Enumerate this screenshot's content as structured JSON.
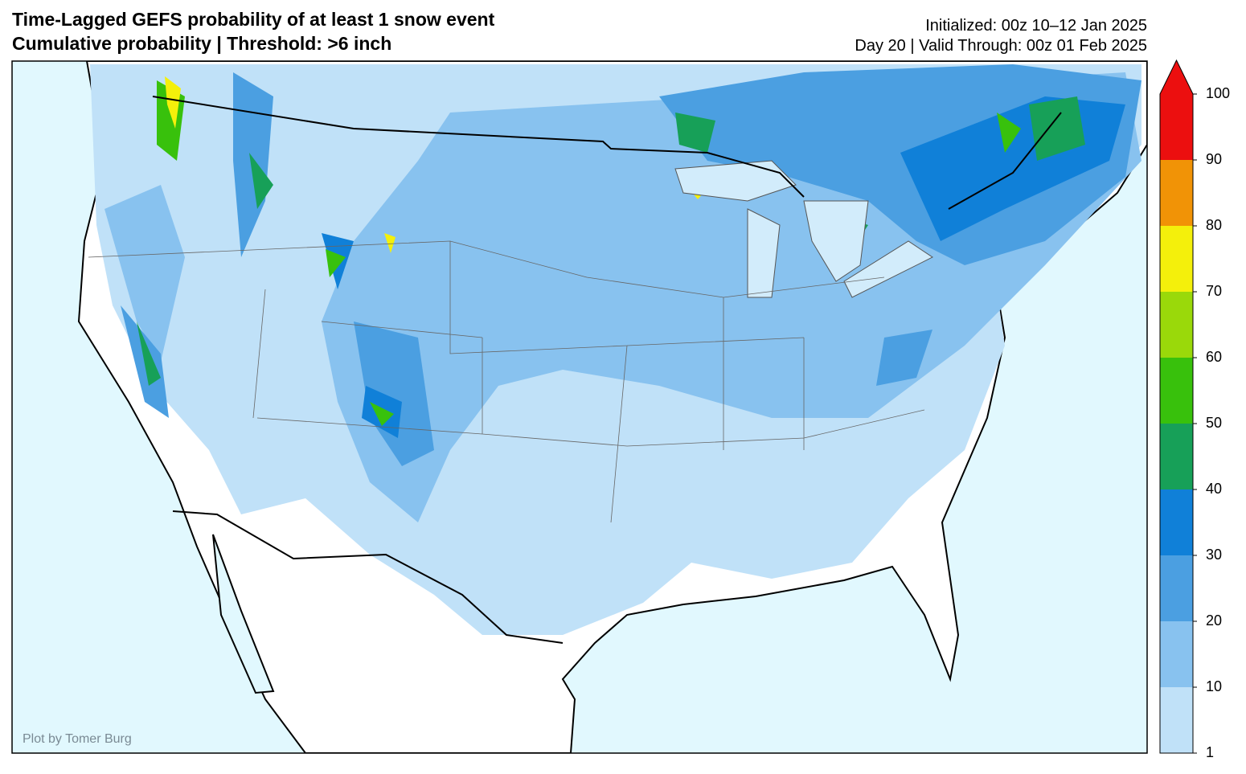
{
  "header": {
    "title": "Time-Lagged GEFS probability of at least 1 snow event",
    "subtitle": "Cumulative probability | Threshold: >6 inch",
    "initialized": "Initialized: 00z 10–12 Jan 2025",
    "valid": "Day 20 | Valid Through: 00z 01 Feb 2025"
  },
  "credit": "Plot by Tomer Burg",
  "colorbar": {
    "ticks": [
      1,
      10,
      20,
      30,
      40,
      50,
      60,
      70,
      80,
      90,
      100
    ],
    "colors": [
      "#c0e1f8",
      "#88c2ef",
      "#4b9fe1",
      "#1080d8",
      "#17a058",
      "#38c10c",
      "#9ad90a",
      "#f4f00b",
      "#f19306",
      "#ec0f0f"
    ],
    "extend_color": "#ec0f0f"
  }
}
